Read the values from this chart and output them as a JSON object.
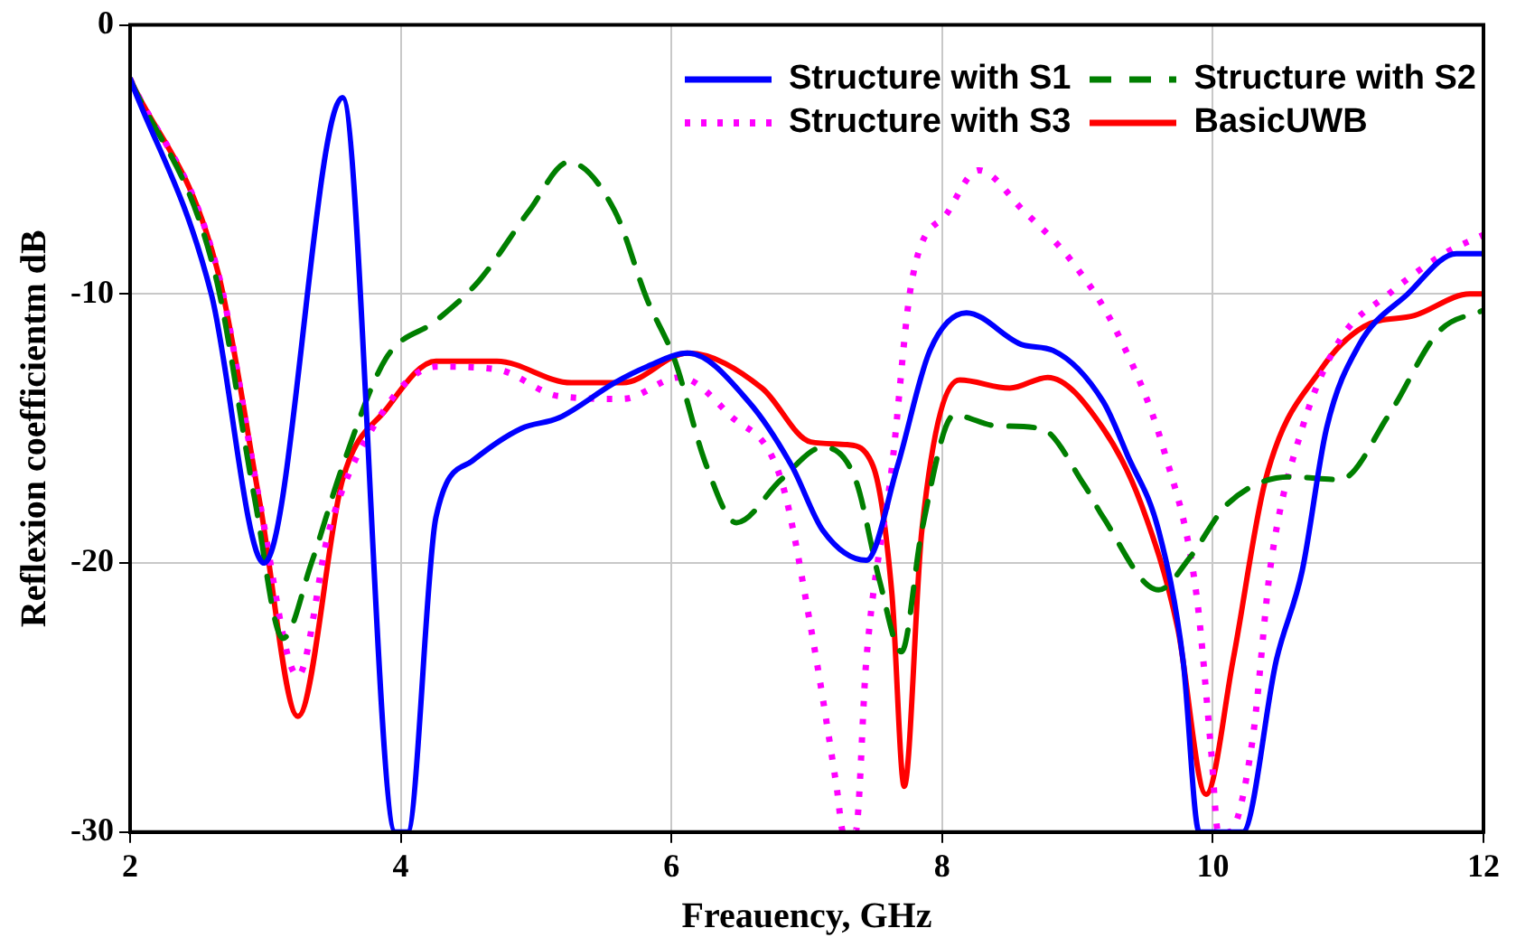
{
  "chart_data": {
    "type": "line",
    "xlabel": "Freauency, GHz",
    "ylabel": "Reflexion coefficientm dB",
    "xlim": [
      2,
      12
    ],
    "xticks": [
      2,
      4,
      6,
      8,
      10,
      12
    ],
    "ylim": [
      -30,
      0
    ],
    "yticks": [
      -30,
      -20,
      -10,
      0
    ],
    "grid": true,
    "legend": "top right",
    "marker": "none",
    "series": [
      {
        "name": "Structure with S1",
        "color": "#0000ff",
        "line_style": "solid",
        "x": [
          2,
          2.6,
          2.99,
          3.57,
          3.96,
          4.05,
          4.26,
          4.53,
          4.89,
          5.17,
          5.58,
          5.82,
          6.12,
          6.57,
          6.89,
          7.12,
          7.44,
          7.67,
          7.91,
          8.18,
          8.6,
          8.82,
          9.19,
          9.37,
          9.6,
          9.78,
          9.9,
          10.22,
          10.47,
          10.66,
          10.84,
          11.08,
          11.44,
          11.8,
          12
        ],
        "values": [
          -2,
          -10,
          -20,
          -2.7,
          -30,
          -30,
          -18.3,
          -16.2,
          -15,
          -14.6,
          -13.3,
          -12.7,
          -12.2,
          -14,
          -16.4,
          -18.8,
          -19.9,
          -16.4,
          -12.1,
          -10.7,
          -11.9,
          -12.1,
          -14,
          -16,
          -18.8,
          -23.6,
          -30,
          -30,
          -23.6,
          -20.3,
          -15,
          -11.9,
          -10,
          -8.5,
          -8.5
        ]
      },
      {
        "name": "Structure with S2",
        "color": "#007f00",
        "line_style": "dashed",
        "x": [
          2,
          2.63,
          2.92,
          3.13,
          3.34,
          3.57,
          3.89,
          4.26,
          4.58,
          4.95,
          5.24,
          5.58,
          5.82,
          6.02,
          6.26,
          6.48,
          6.81,
          7.12,
          7.36,
          7.54,
          7.7,
          7.85,
          8.09,
          8.4,
          8.73,
          9.05,
          9.19,
          9.6,
          9.83,
          10.11,
          10.57,
          10.94,
          11.3,
          11.67,
          12
        ],
        "values": [
          -2,
          -9.3,
          -17.6,
          -22.8,
          -20,
          -16.4,
          -12.4,
          -11,
          -9.5,
          -6.9,
          -5.1,
          -6.9,
          -10.2,
          -12.4,
          -16.4,
          -18.5,
          -16.9,
          -15.7,
          -16.9,
          -20.7,
          -23.3,
          -18.8,
          -14.5,
          -14.9,
          -15,
          -17.1,
          -18.3,
          -21,
          -19.8,
          -17.8,
          -16.8,
          -16.9,
          -14.5,
          -11.4,
          -10.6
        ]
      },
      {
        "name": "Structure with S3",
        "color": "#ff00ff",
        "line_style": "dotted",
        "x": [
          2,
          2.65,
          2.96,
          3.24,
          3.47,
          3.79,
          4.26,
          4.71,
          5.17,
          5.64,
          6.06,
          6.43,
          6.81,
          7.03,
          7.22,
          7.27,
          7.36,
          7.44,
          7.63,
          7.77,
          8.05,
          8.27,
          8.6,
          8.96,
          9.29,
          9.65,
          9.88,
          9.99,
          10.04,
          10.12,
          10.29,
          10.43,
          10.66,
          10.94,
          11.3,
          11.71,
          12
        ],
        "values": [
          -2,
          -9.2,
          -17.8,
          -24.2,
          -18.8,
          -15,
          -12.7,
          -12.8,
          -13.8,
          -13.9,
          -13.1,
          -14.5,
          -16.9,
          -22.4,
          -28.3,
          -30,
          -30,
          -23.6,
          -16.4,
          -9.7,
          -6.9,
          -5.4,
          -6.9,
          -8.8,
          -11.4,
          -16,
          -21.2,
          -27.1,
          -30,
          -30,
          -26.7,
          -20,
          -15,
          -11.7,
          -10,
          -8.5,
          -7.8
        ]
      },
      {
        "name": "BasicUWB",
        "color": "#ff0000",
        "line_style": "solid",
        "x": [
          2,
          2.65,
          2.96,
          3.24,
          3.57,
          3.89,
          4.26,
          4.71,
          5.26,
          5.64,
          6.12,
          6.67,
          7.03,
          7.3,
          7.49,
          7.63,
          7.72,
          7.85,
          8.13,
          8.5,
          8.78,
          9.19,
          9.47,
          9.74,
          9.95,
          10.15,
          10.39,
          10.8,
          11.12,
          11.49,
          11.9,
          12
        ],
        "values": [
          -2,
          -9.2,
          -17.8,
          -25.7,
          -16.9,
          -14.3,
          -12.5,
          -12.5,
          -13.3,
          -13.3,
          -12.2,
          -13.5,
          -15.5,
          -15.6,
          -16.4,
          -21.2,
          -28.3,
          -18.8,
          -13.2,
          -13.5,
          -13.1,
          -15,
          -17.8,
          -22.4,
          -28.6,
          -23.6,
          -16.9,
          -12.8,
          -11.2,
          -10.8,
          -10,
          -10
        ]
      }
    ]
  }
}
